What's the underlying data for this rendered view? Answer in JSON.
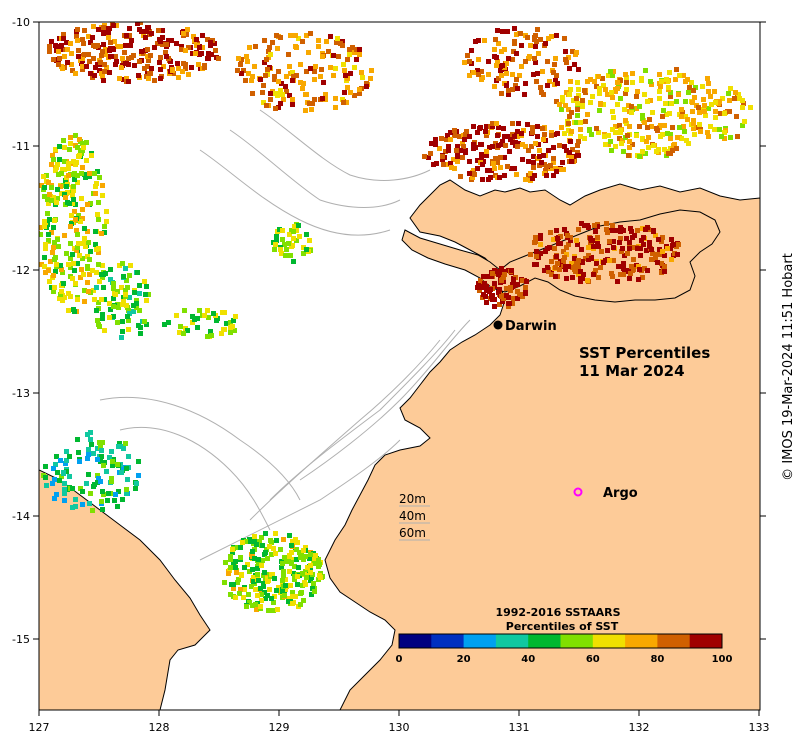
{
  "map": {
    "title_line1": "SST Percentiles",
    "title_line2": "11 Mar 2024",
    "lon_ticks": [
      "127",
      "128",
      "129",
      "130",
      "131",
      "132",
      "133"
    ],
    "lat_ticks": [
      "-10",
      "-11",
      "-12",
      "-13",
      "-14",
      "-15"
    ],
    "places": {
      "darwin": "Darwin",
      "argo": "Argo"
    },
    "depth_labels": [
      "20m",
      "40m",
      "60m"
    ],
    "colors": {
      "land": "#fdcb98",
      "sea": "#ffffff",
      "bathymetry": "#b0b0b0",
      "coastline": "#000000",
      "argo_marker": "#ff00ff"
    }
  },
  "colorbar": {
    "title_line1": "1992-2016 SSTAARS",
    "title_line2": "Percentiles of SST",
    "ticks": [
      "0",
      "20",
      "40",
      "60",
      "80",
      "100"
    ],
    "bins": [
      "#000080",
      "#0030c0",
      "#00a0f0",
      "#10c8a0",
      "#00b830",
      "#80e000",
      "#f0e000",
      "#f8a800",
      "#d06000",
      "#a00000"
    ]
  },
  "credit": "© IMOS 19-Mar-2024 11:51 Hobart"
}
